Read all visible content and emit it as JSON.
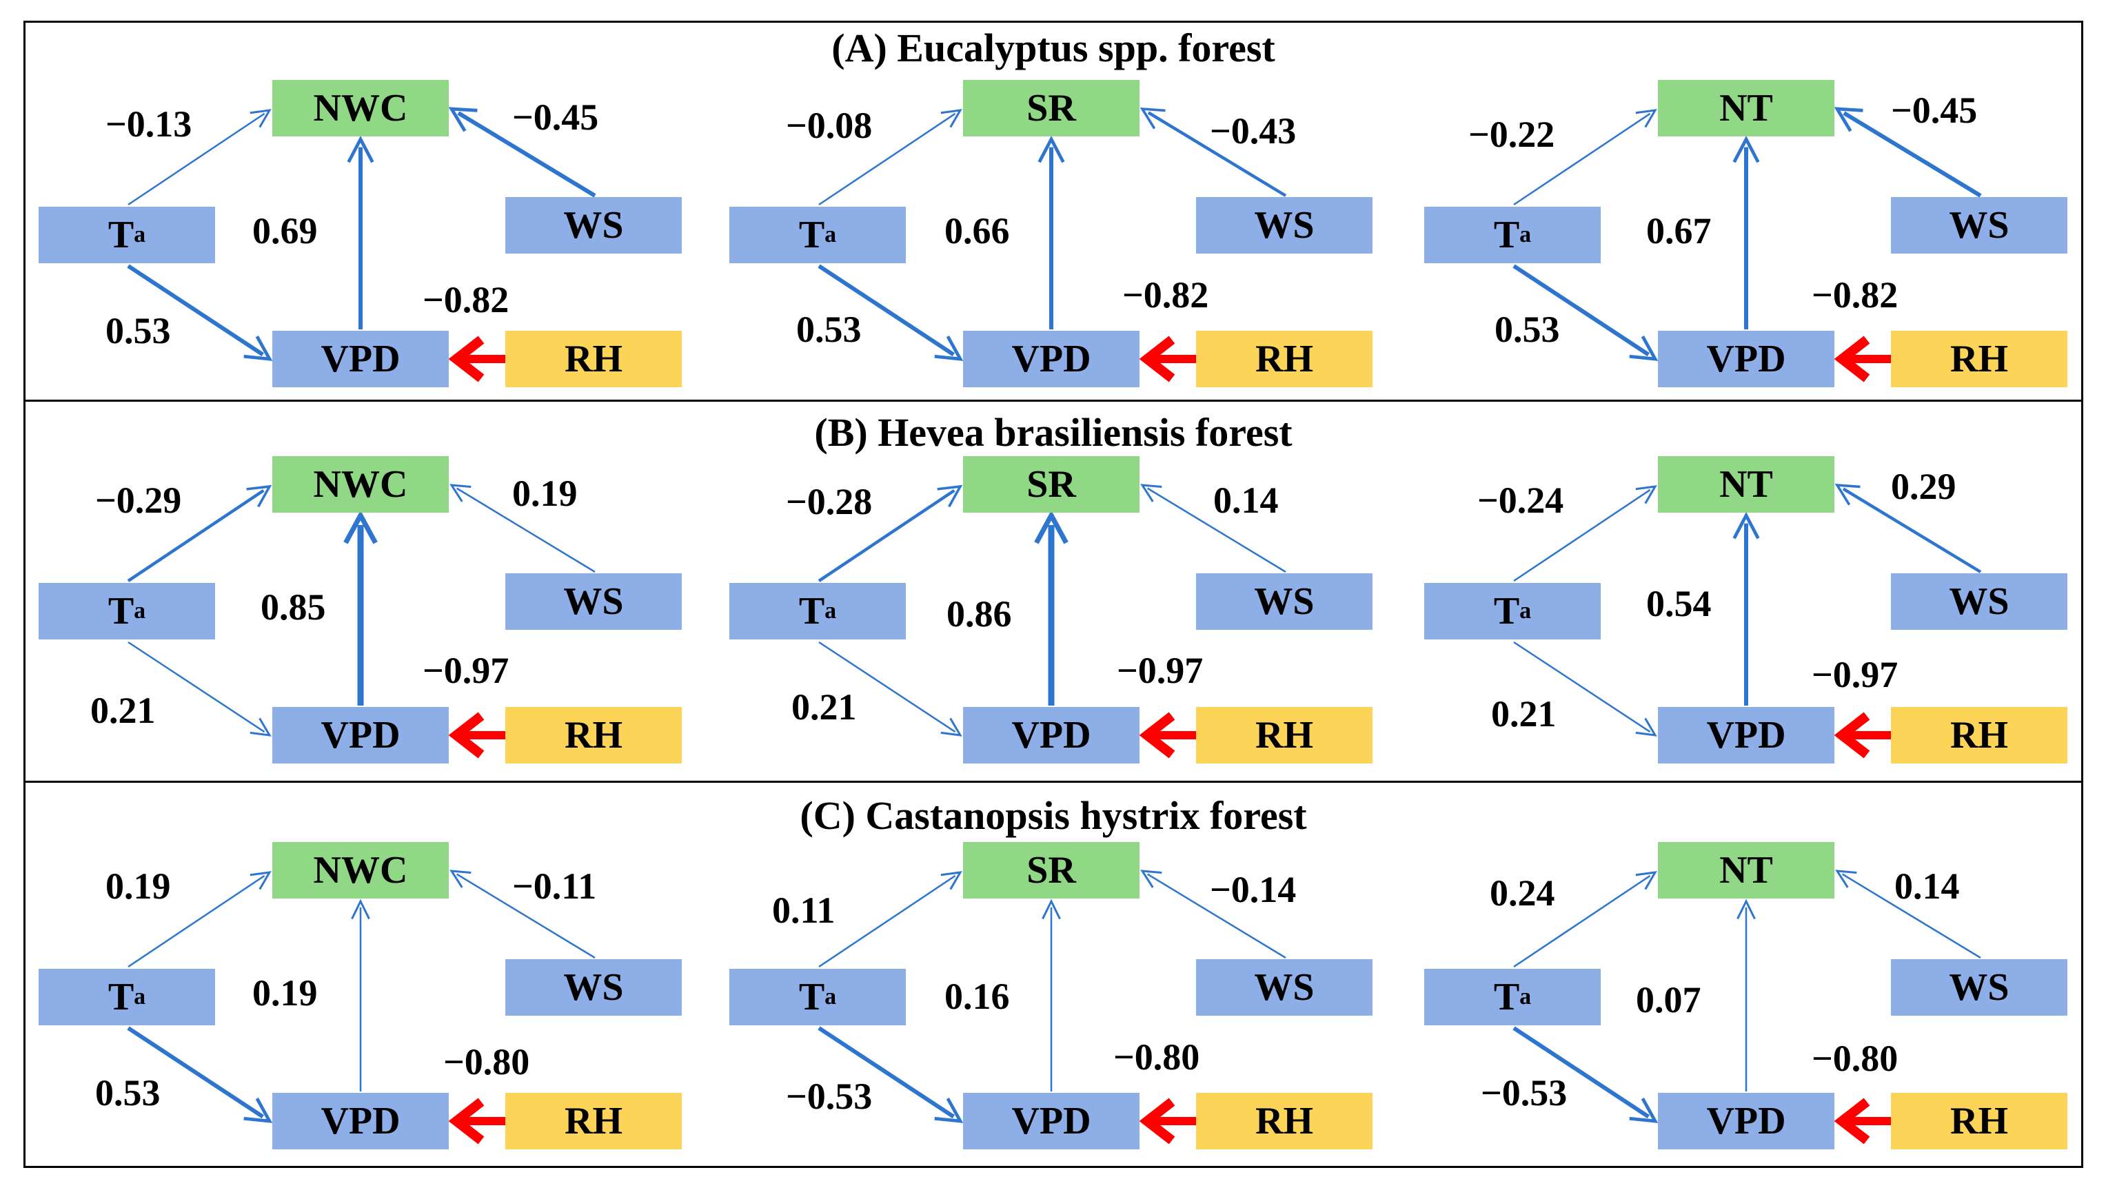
{
  "nodes": {
    "ta_main": "T",
    "ta_sub": "a",
    "vpd": "VPD",
    "ws": "WS",
    "rh": "RH"
  },
  "panels": [
    {
      "title": "(A) Eucalyptus spp. forest",
      "diagrams": [
        {
          "response": "NWC",
          "coef_ta_resp": "−0.13",
          "coef_vpd_resp": "0.69",
          "coef_ws_resp": "−0.45",
          "coef_ta_vpd": "0.53",
          "coef_rh_vpd": "−0.82"
        },
        {
          "response": "SR",
          "coef_ta_resp": "−0.08",
          "coef_vpd_resp": "0.66",
          "coef_ws_resp": "−0.43",
          "coef_ta_vpd": "0.53",
          "coef_rh_vpd": "−0.82"
        },
        {
          "response": "NT",
          "coef_ta_resp": "−0.22",
          "coef_vpd_resp": "0.67",
          "coef_ws_resp": "−0.45",
          "coef_ta_vpd": "0.53",
          "coef_rh_vpd": "−0.82"
        }
      ]
    },
    {
      "title": "(B) Hevea brasiliensis forest",
      "diagrams": [
        {
          "response": "NWC",
          "coef_ta_resp": "−0.29",
          "coef_vpd_resp": "0.85",
          "coef_ws_resp": "0.19",
          "coef_ta_vpd": "0.21",
          "coef_rh_vpd": "−0.97"
        },
        {
          "response": "SR",
          "coef_ta_resp": "−0.28",
          "coef_vpd_resp": "0.86",
          "coef_ws_resp": "0.14",
          "coef_ta_vpd": "0.21",
          "coef_rh_vpd": "−0.97"
        },
        {
          "response": "NT",
          "coef_ta_resp": "−0.24",
          "coef_vpd_resp": "0.54",
          "coef_ws_resp": "0.29",
          "coef_ta_vpd": "0.21",
          "coef_rh_vpd": "−0.97"
        }
      ]
    },
    {
      "title": "(C) Castanopsis hystrix forest",
      "diagrams": [
        {
          "response": "NWC",
          "coef_ta_resp": "0.19",
          "coef_vpd_resp": "0.19",
          "coef_ws_resp": "−0.11",
          "coef_ta_vpd": "0.53",
          "coef_rh_vpd": "−0.80"
        },
        {
          "response": "SR",
          "coef_ta_resp": "0.11",
          "coef_vpd_resp": "0.16",
          "coef_ws_resp": "−0.14",
          "coef_ta_vpd": "−0.53",
          "coef_rh_vpd": "−0.80"
        },
        {
          "response": "NT",
          "coef_ta_resp": "0.24",
          "coef_vpd_resp": "0.07",
          "coef_ws_resp": "0.14",
          "coef_ta_vpd": "−0.53",
          "coef_rh_vpd": "−0.80"
        }
      ]
    }
  ],
  "colors": {
    "response_box": "#91d886",
    "driver_box": "#8eaee7",
    "rh_box": "#fbd458",
    "arrow_blue": "#2e75d0",
    "arrow_red": "#ff0000"
  }
}
